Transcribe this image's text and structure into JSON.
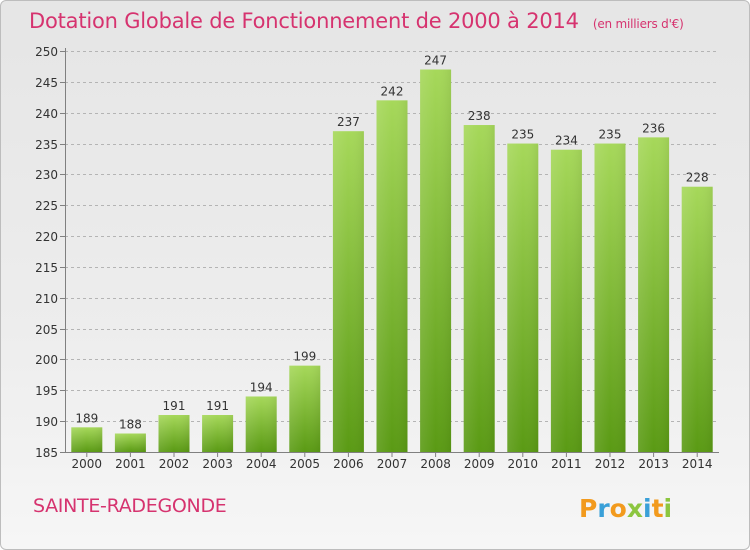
{
  "title": "Dotation Globale de Fonctionnement de 2000 à 2014",
  "unit_note": "(en milliers d'€)",
  "town": "SAINTE-RADEGONDE",
  "logo_text": "Proxiti",
  "colors": {
    "bar_light": "#a6d85a",
    "bar_dark": "#5a9a14",
    "title": "#d6336f"
  },
  "chart_data": {
    "type": "bar",
    "title": "Dotation Globale de Fonctionnement de 2000 à 2014",
    "xlabel": "",
    "ylabel": "",
    "categories": [
      "2000",
      "2001",
      "2002",
      "2003",
      "2004",
      "2005",
      "2006",
      "2007",
      "2008",
      "2009",
      "2010",
      "2011",
      "2012",
      "2013",
      "2014"
    ],
    "values": [
      189,
      188,
      191,
      191,
      194,
      199,
      237,
      242,
      247,
      238,
      235,
      234,
      235,
      236,
      228
    ],
    "ylim": [
      185,
      250
    ],
    "yticks": [
      185,
      190,
      195,
      200,
      205,
      210,
      215,
      220,
      225,
      230,
      235,
      240,
      245,
      250
    ],
    "grid": true,
    "legend": "none"
  }
}
